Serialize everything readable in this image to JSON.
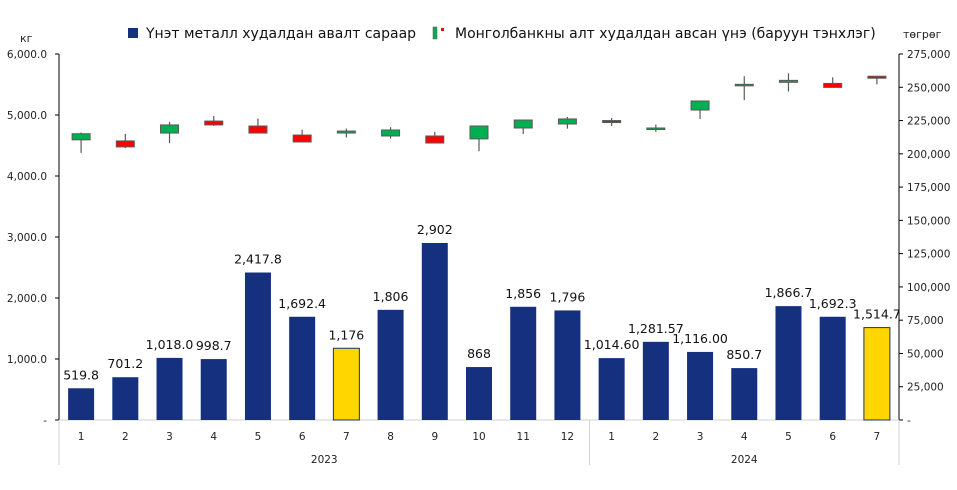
{
  "chart_data": {
    "type": "bar+candlestick",
    "title": "",
    "legend": {
      "placement": "top",
      "entries": [
        {
          "name": "Үнэт металл худалдан авалт сараар",
          "marker": "bar"
        },
        {
          "name": "Монголбанкны алт худалдан авсан үнэ (баруун тэнхлэг)",
          "marker": "candlestick"
        }
      ]
    },
    "left_axis": {
      "unit_label": "кг",
      "ylim": [
        0,
        6000
      ],
      "ticks": [
        0,
        1000,
        2000,
        3000,
        4000,
        5000,
        6000
      ],
      "tick_labels": [
        "-",
        "1,000.0",
        "2,000.0",
        "3,000.0",
        "4,000.0",
        "5,000.0",
        "6,000.0"
      ]
    },
    "right_axis": {
      "unit_label": "төгрөг",
      "ylim": [
        0,
        275000
      ],
      "ticks": [
        0,
        25000,
        50000,
        75000,
        100000,
        125000,
        150000,
        175000,
        200000,
        225000,
        250000,
        275000
      ],
      "tick_labels": [
        "-",
        "25,000",
        "50,000",
        "75,000",
        "100,000",
        "125,000",
        "150,000",
        "175,000",
        "200,000",
        "225,000",
        "250,000",
        "275,000"
      ]
    },
    "groups": [
      {
        "label": "2023",
        "categories": [
          "1",
          "2",
          "3",
          "4",
          "5",
          "6",
          "7",
          "8",
          "9",
          "10",
          "11",
          "12"
        ]
      },
      {
        "label": "2024",
        "categories": [
          "1",
          "2",
          "3",
          "4",
          "5",
          "6",
          "7"
        ]
      }
    ],
    "categories": [
      "1",
      "2",
      "3",
      "4",
      "5",
      "6",
      "7",
      "8",
      "9",
      "10",
      "11",
      "12",
      "1",
      "2",
      "3",
      "4",
      "5",
      "6",
      "7"
    ],
    "series": [
      {
        "name": "Үнэт металл худалдан авалт сараар",
        "type": "bar",
        "axis": "left",
        "values": [
          519.8,
          701.2,
          1018.0,
          998.7,
          2417.8,
          1692.4,
          1176,
          1806,
          2902,
          868,
          1856,
          1796,
          1014.6,
          1281.57,
          1116.0,
          850.7,
          1866.7,
          1692.3,
          1514.7
        ],
        "labels": [
          "519.8",
          "701.2",
          "1,018.0",
          "998.7",
          "2,417.8",
          "1,692.4",
          "1,176",
          "1,806",
          "2,902",
          "868",
          "1,856",
          "1,796",
          "1,014.60",
          "1,281.57",
          "1,116.00",
          "850.7",
          "1,866.7",
          "1,692.3",
          "1,514.7"
        ],
        "highlight_indices": [
          6,
          18
        ]
      },
      {
        "name": "Монголбанкны алт худалдан авсан үнэ (баруун тэнхлэг)",
        "type": "candlestick",
        "axis": "right",
        "ohlc": [
          [
            210500,
            216000,
            200700,
            215100
          ],
          [
            209700,
            215000,
            204400,
            205200
          ],
          [
            215600,
            224000,
            208000,
            221700
          ],
          [
            224600,
            228500,
            221000,
            221700
          ],
          [
            220900,
            226500,
            215600,
            215600
          ],
          [
            214100,
            218000,
            208900,
            208900
          ],
          [
            215600,
            219000,
            212300,
            217100
          ],
          [
            213400,
            220000,
            211500,
            217900
          ],
          [
            213400,
            216500,
            208100,
            208100
          ],
          [
            211200,
            220900,
            202000,
            220900
          ],
          [
            219400,
            225400,
            214900,
            225400
          ],
          [
            222400,
            227700,
            218900,
            226200
          ],
          [
            225000,
            226900,
            220900,
            223500
          ],
          [
            219400,
            222000,
            216500,
            219400
          ],
          [
            232900,
            239700,
            226200,
            239700
          ],
          [
            252200,
            258300,
            240300,
            252200
          ],
          [
            253700,
            260500,
            246800,
            255200
          ],
          [
            252900,
            257500,
            249900,
            249900
          ],
          [
            258300,
            258300,
            252200,
            256800
          ]
        ]
      }
    ],
    "colors": {
      "bar": "#14307f",
      "bar_highlight": "#ffd600",
      "bar_highlight_border": "#14307f",
      "candle_up": "#00b050",
      "candle_down": "#ff0000",
      "candle_border": "#595959",
      "axis": "#000000",
      "category_divider": "#d0d0d0"
    }
  }
}
